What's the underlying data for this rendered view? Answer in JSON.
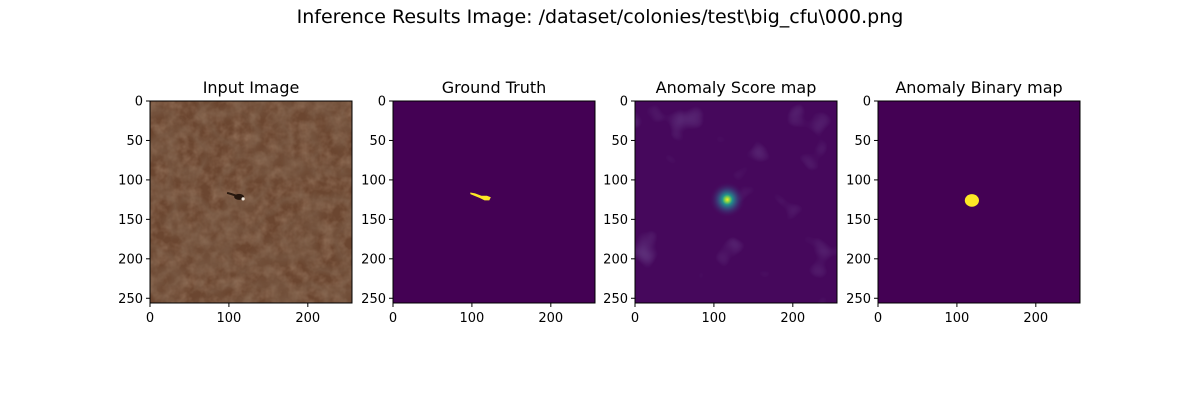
{
  "figure": {
    "suptitle": "Inference Results Image: /dataset/colonies/test\\big_cfu\\000.png"
  },
  "chart_data": [
    {
      "type": "heatmap",
      "title": "Input Image",
      "content": "leather texture photograph with small defect",
      "xlim": [
        0,
        256
      ],
      "ylim": [
        256,
        0
      ],
      "xticks": [
        0,
        100,
        200
      ],
      "yticks": [
        0,
        50,
        100,
        150,
        200,
        250
      ],
      "colors": {
        "base": "#6b4630",
        "dark": "#3f2718",
        "light": "#8a5c40"
      },
      "defect": {
        "x": 118,
        "y": 124
      }
    },
    {
      "type": "heatmap",
      "title": "Ground Truth",
      "content": "binary mask",
      "xlim": [
        0,
        256
      ],
      "ylim": [
        256,
        0
      ],
      "xticks": [
        0,
        100,
        200
      ],
      "yticks": [
        0,
        50,
        100,
        150,
        200,
        250
      ],
      "colors": {
        "background": "#440154",
        "foreground": "#fde725"
      },
      "mask_polygon": [
        [
          98,
          116
        ],
        [
          104,
          117
        ],
        [
          112,
          120
        ],
        [
          119,
          120
        ],
        [
          124,
          122
        ],
        [
          122,
          126
        ],
        [
          116,
          126
        ],
        [
          110,
          123
        ],
        [
          103,
          120
        ],
        [
          98,
          118
        ]
      ]
    },
    {
      "type": "heatmap",
      "title": "Anomaly Score map",
      "content": "score map",
      "xlim": [
        0,
        256
      ],
      "ylim": [
        256,
        0
      ],
      "xticks": [
        0,
        100,
        200
      ],
      "yticks": [
        0,
        50,
        100,
        150,
        200,
        250
      ],
      "colors": {
        "low": "#46085c",
        "mid": "#31688e",
        "high": "#21918c",
        "peak": "#8fd744",
        "max": "#fde725"
      },
      "peak": {
        "x": 117,
        "y": 125
      }
    },
    {
      "type": "heatmap",
      "title": "Anomaly Binary map",
      "content": "binary mask",
      "xlim": [
        0,
        256
      ],
      "ylim": [
        256,
        0
      ],
      "xticks": [
        0,
        100,
        200
      ],
      "yticks": [
        0,
        50,
        100,
        150,
        200,
        250
      ],
      "colors": {
        "background": "#440154",
        "foreground": "#fde725"
      },
      "blob": {
        "x": 119,
        "y": 126,
        "rx": 9,
        "ry": 8
      }
    }
  ]
}
